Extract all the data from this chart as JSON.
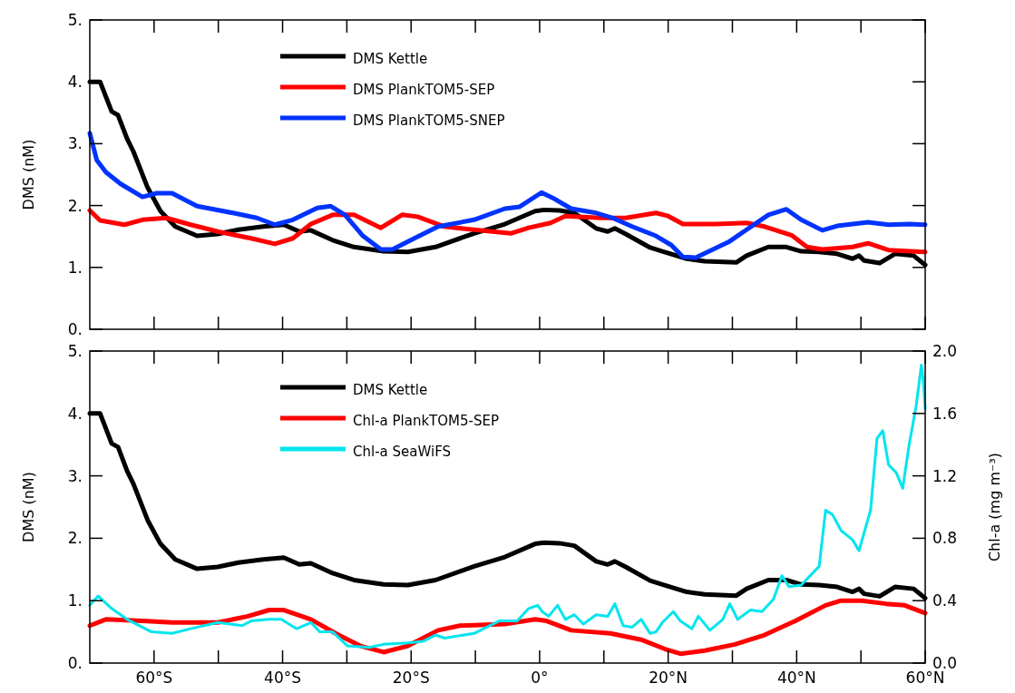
{
  "chart_data": [
    {
      "type": "line",
      "ylabel": "DMS (nM)",
      "xlim": [
        -70,
        60
      ],
      "ylim": [
        0,
        5
      ],
      "xticks": [
        {
          "value": -60,
          "label": null
        },
        {
          "value": -50,
          "label": null
        },
        {
          "value": -40,
          "label": null
        },
        {
          "value": -30,
          "label": null
        },
        {
          "value": -20,
          "label": null
        },
        {
          "value": -10,
          "label": null
        },
        {
          "value": 0,
          "label": null
        },
        {
          "value": 10,
          "label": null
        },
        {
          "value": 20,
          "label": null
        },
        {
          "value": 30,
          "label": null
        },
        {
          "value": 40,
          "label": null
        },
        {
          "value": 50,
          "label": null
        },
        {
          "value": 60,
          "label": null
        }
      ],
      "yticks": [
        {
          "value": 0,
          "label": "0."
        },
        {
          "value": 1,
          "label": "1."
        },
        {
          "value": 2,
          "label": "2."
        },
        {
          "value": 3,
          "label": "3."
        },
        {
          "value": 4,
          "label": "4."
        },
        {
          "value": 5,
          "label": "5."
        }
      ],
      "tick_labels": "y",
      "legend": "top left",
      "grid": false,
      "series": [
        {
          "name": "DMS Kettle",
          "color": "#000000",
          "x": [
            -70,
            -68.4,
            -66.6,
            -65.6,
            -64.2,
            -63.2,
            -61,
            -59,
            -56.7,
            -53.3,
            -50.1,
            -46.9,
            -43,
            -39.8,
            -37.4,
            -35.6,
            -32.2,
            -28.9,
            -24.3,
            -20.5,
            -16.2,
            -10.2,
            -5.4,
            -0.7,
            0.7,
            3.1,
            5.4,
            8.8,
            10.6,
            11.7,
            13.4,
            17.2,
            19.1,
            22.9,
            25.7,
            30.6,
            32.2,
            35.6,
            38.4,
            40.7,
            43.5,
            46.3,
            48.7,
            49.7,
            50.5,
            52.9,
            55.3,
            58.2,
            60
          ],
          "values": [
            4.0,
            4.0,
            3.52,
            3.46,
            3.08,
            2.87,
            2.29,
            1.91,
            1.66,
            1.51,
            1.54,
            1.61,
            1.66,
            1.69,
            1.58,
            1.6,
            1.44,
            1.33,
            1.26,
            1.25,
            1.33,
            1.55,
            1.7,
            1.91,
            1.93,
            1.92,
            1.88,
            1.63,
            1.58,
            1.63,
            1.54,
            1.32,
            1.26,
            1.14,
            1.1,
            1.08,
            1.19,
            1.33,
            1.33,
            1.26,
            1.25,
            1.22,
            1.14,
            1.19,
            1.11,
            1.07,
            1.22,
            1.19,
            1.04
          ]
        },
        {
          "name": "DMS PlankTOM5-SEP",
          "color": "#ff0000",
          "x": [
            -70,
            -68.4,
            -64.6,
            -61.8,
            -58.1,
            -54.3,
            -50.1,
            -44.9,
            -41.2,
            -38.4,
            -35.6,
            -32.2,
            -28.9,
            -24.7,
            -21.4,
            -19,
            -14.8,
            -10.2,
            -4.5,
            -1.7,
            1.7,
            4,
            9.6,
            13.4,
            18.1,
            20,
            22.3,
            27.5,
            32.2,
            35,
            39.2,
            41.6,
            44,
            48.7,
            51.1,
            54.3,
            60
          ],
          "values": [
            1.92,
            1.76,
            1.69,
            1.77,
            1.8,
            1.69,
            1.58,
            1.47,
            1.38,
            1.47,
            1.7,
            1.85,
            1.85,
            1.64,
            1.85,
            1.82,
            1.66,
            1.61,
            1.55,
            1.64,
            1.72,
            1.83,
            1.8,
            1.8,
            1.88,
            1.83,
            1.7,
            1.7,
            1.72,
            1.66,
            1.52,
            1.33,
            1.29,
            1.33,
            1.39,
            1.28,
            1.25
          ]
        },
        {
          "name": "DMS PlankTOM5-SNEP",
          "color": "#0033ff",
          "x": [
            -70,
            -68.9,
            -67.5,
            -65.2,
            -61.8,
            -59.6,
            -57.2,
            -53.3,
            -47.7,
            -44,
            -41.2,
            -38.4,
            -34.6,
            -32.5,
            -30.3,
            -27.5,
            -24.7,
            -22.9,
            -19.5,
            -15.8,
            -10.2,
            -5.4,
            -3.1,
            0.3,
            2.1,
            4.9,
            8.8,
            11.6,
            14.4,
            18.1,
            20.5,
            22.3,
            24.3,
            29.4,
            32.2,
            35.6,
            38.4,
            40.7,
            44,
            46.3,
            51.1,
            54.3,
            57.6,
            60
          ],
          "values": [
            3.17,
            2.73,
            2.54,
            2.35,
            2.14,
            2.2,
            2.2,
            1.99,
            1.88,
            1.8,
            1.69,
            1.77,
            1.96,
            1.99,
            1.85,
            1.51,
            1.29,
            1.29,
            1.47,
            1.66,
            1.77,
            1.95,
            1.98,
            2.21,
            2.12,
            1.95,
            1.88,
            1.79,
            1.66,
            1.51,
            1.36,
            1.17,
            1.16,
            1.41,
            1.61,
            1.85,
            1.94,
            1.77,
            1.6,
            1.67,
            1.73,
            1.69,
            1.7,
            1.69
          ]
        }
      ]
    },
    {
      "type": "line",
      "ylabel": "DMS (nM)",
      "y2label": "Chl-a (mg m⁻³)",
      "xlim": [
        -70,
        60
      ],
      "ylim": [
        0,
        5
      ],
      "y2lim": [
        0,
        2
      ],
      "xticks": [
        {
          "value": -60,
          "label": "60°S"
        },
        {
          "value": -50,
          "label": null
        },
        {
          "value": -40,
          "label": "40°S"
        },
        {
          "value": -30,
          "label": null
        },
        {
          "value": -20,
          "label": "20°S"
        },
        {
          "value": -10,
          "label": null
        },
        {
          "value": 0,
          "label": "0°"
        },
        {
          "value": 10,
          "label": null
        },
        {
          "value": 20,
          "label": "20°N"
        },
        {
          "value": 30,
          "label": null
        },
        {
          "value": 40,
          "label": "40°N"
        },
        {
          "value": 50,
          "label": null
        },
        {
          "value": 60,
          "label": "60°N"
        }
      ],
      "yticks": [
        {
          "value": 0,
          "label": "0."
        },
        {
          "value": 1,
          "label": "1."
        },
        {
          "value": 2,
          "label": "2."
        },
        {
          "value": 3,
          "label": "3."
        },
        {
          "value": 4,
          "label": "4."
        },
        {
          "value": 5,
          "label": "5."
        }
      ],
      "y2ticks": [
        {
          "value": 0,
          "label": "0.0"
        },
        {
          "value": 0.4,
          "label": "0.4"
        },
        {
          "value": 0.8,
          "label": "0.8"
        },
        {
          "value": 1.2,
          "label": "1.2"
        },
        {
          "value": 1.6,
          "label": "1.6"
        },
        {
          "value": 2,
          "label": "2.0"
        }
      ],
      "legend": "top left",
      "grid": false,
      "series": [
        {
          "name": "DMS Kettle",
          "color": "#000000",
          "x": [
            -70,
            -68.4,
            -66.6,
            -65.6,
            -64.2,
            -63.2,
            -61,
            -59,
            -56.7,
            -53.3,
            -50.1,
            -46.9,
            -43,
            -39.8,
            -37.4,
            -35.6,
            -32.2,
            -28.9,
            -24.3,
            -20.5,
            -16.2,
            -10.2,
            -5.4,
            -0.7,
            0.7,
            3.1,
            5.4,
            8.8,
            10.6,
            11.7,
            13.4,
            17.2,
            19.1,
            22.9,
            25.7,
            30.6,
            32.2,
            35.6,
            38.4,
            40.7,
            43.5,
            46.3,
            48.7,
            49.7,
            50.5,
            52.9,
            55.3,
            58.2,
            60
          ],
          "values": [
            4.0,
            4.0,
            3.52,
            3.46,
            3.08,
            2.87,
            2.29,
            1.91,
            1.66,
            1.51,
            1.54,
            1.61,
            1.66,
            1.69,
            1.58,
            1.6,
            1.44,
            1.33,
            1.26,
            1.25,
            1.33,
            1.55,
            1.7,
            1.91,
            1.93,
            1.92,
            1.88,
            1.63,
            1.58,
            1.63,
            1.54,
            1.32,
            1.26,
            1.14,
            1.1,
            1.08,
            1.19,
            1.33,
            1.33,
            1.26,
            1.25,
            1.22,
            1.14,
            1.19,
            1.11,
            1.07,
            1.22,
            1.19,
            1.04
          ]
        },
        {
          "name": "Chl-a PlankTOM5-SEP",
          "color": "#ff0000",
          "axis": "y2",
          "x": [
            -70,
            -67.5,
            -61.8,
            -57.2,
            -50.1,
            -45.4,
            -42.1,
            -39.8,
            -35.6,
            -31.3,
            -27.9,
            -24.3,
            -20.5,
            -15.8,
            -12.4,
            -5.4,
            -0.7,
            1.1,
            4.9,
            11,
            15.8,
            19.5,
            21.9,
            25.7,
            30.4,
            35,
            39.8,
            44.5,
            46.9,
            50.1,
            53.9,
            56.8,
            60
          ],
          "values": [
            0.24,
            0.28,
            0.27,
            0.26,
            0.26,
            0.3,
            0.34,
            0.34,
            0.28,
            0.18,
            0.11,
            0.07,
            0.11,
            0.21,
            0.24,
            0.25,
            0.28,
            0.27,
            0.21,
            0.19,
            0.15,
            0.09,
            0.06,
            0.08,
            0.12,
            0.18,
            0.27,
            0.37,
            0.4,
            0.4,
            0.38,
            0.37,
            0.32
          ]
        },
        {
          "name": "Chl-a SeaWiFS",
          "color": "#00e5ee",
          "axis": "y2",
          "x": [
            -70,
            -68.7,
            -66.6,
            -64.2,
            -60.4,
            -57.2,
            -54.3,
            -50.1,
            -46.3,
            -44.9,
            -42.1,
            -40.2,
            -37.8,
            -35.6,
            -34.2,
            -32.2,
            -29.9,
            -26.5,
            -24.3,
            -20.5,
            -18.1,
            -16.2,
            -14.8,
            -10.2,
            -6.3,
            -3.5,
            -1.7,
            -0.3,
            0.4,
            1.4,
            2.8,
            4,
            5.4,
            6.8,
            8.8,
            10.6,
            11.7,
            13,
            14.4,
            15.8,
            17.2,
            18.1,
            19.1,
            20.8,
            21.9,
            23.7,
            24.7,
            26.5,
            28.5,
            29.6,
            30.8,
            32.8,
            34.6,
            36.4,
            37.7,
            38.8,
            40.7,
            43.5,
            44.5,
            45.6,
            46.9,
            48.7,
            49.7,
            51.5,
            52.5,
            53.4,
            54.3,
            55.5,
            56.5,
            57.5,
            58.6,
            59.4,
            59.7,
            60
          ],
          "values": [
            0.37,
            0.43,
            0.35,
            0.28,
            0.2,
            0.19,
            0.22,
            0.26,
            0.24,
            0.27,
            0.28,
            0.28,
            0.22,
            0.26,
            0.2,
            0.2,
            0.11,
            0.1,
            0.12,
            0.13,
            0.14,
            0.18,
            0.16,
            0.19,
            0.27,
            0.27,
            0.35,
            0.37,
            0.33,
            0.3,
            0.37,
            0.28,
            0.31,
            0.25,
            0.31,
            0.3,
            0.38,
            0.24,
            0.23,
            0.28,
            0.19,
            0.2,
            0.26,
            0.33,
            0.27,
            0.22,
            0.3,
            0.21,
            0.28,
            0.38,
            0.28,
            0.34,
            0.33,
            0.41,
            0.56,
            0.49,
            0.5,
            0.62,
            0.98,
            0.95,
            0.85,
            0.79,
            0.72,
            0.98,
            1.44,
            1.49,
            1.27,
            1.22,
            1.12,
            1.4,
            1.65,
            1.91,
            1.81,
            1.63
          ]
        }
      ]
    }
  ]
}
